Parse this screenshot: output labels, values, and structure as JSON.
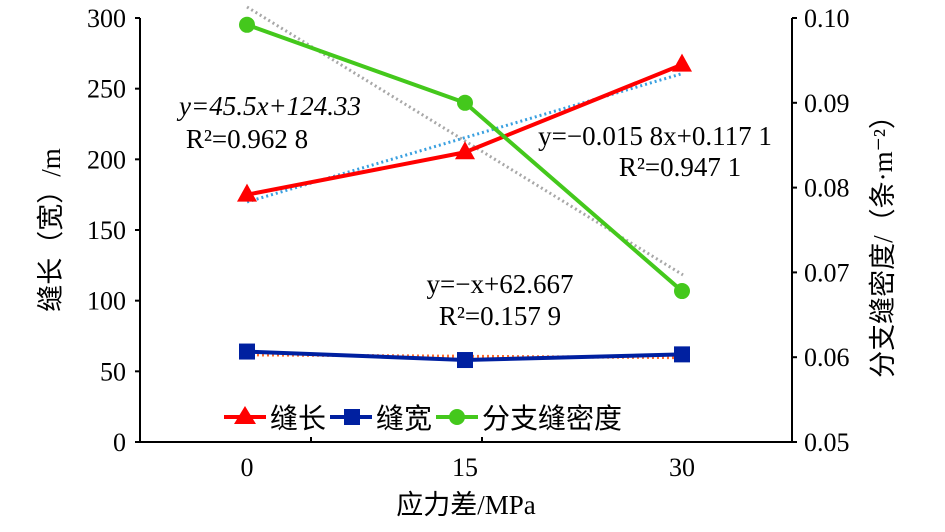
{
  "chart_data": {
    "type": "line",
    "categories": [
      "0",
      "15",
      "30"
    ],
    "xlabel": "应力差/MPa",
    "ylabel": "缝长（宽）/m",
    "ylabel_right": "分支缝密度/（条·m⁻²）",
    "ylim": [
      0,
      300
    ],
    "yticks": [
      "0",
      "50",
      "100",
      "150",
      "200",
      "250",
      "300"
    ],
    "ylim_right": [
      0.05,
      0.1
    ],
    "yticks_right": [
      "0.05",
      "0.06",
      "0.07",
      "0.08",
      "0.09",
      "0.10"
    ],
    "legend_position": "bottom-inside",
    "series": [
      {
        "name": "缝长",
        "axis": "left",
        "color": "#ff0000",
        "marker": "triangle",
        "values": [
          175,
          205,
          267
        ]
      },
      {
        "name": "缝宽",
        "axis": "left",
        "color": "#0020a0",
        "marker": "square",
        "values": [
          64,
          58,
          62
        ]
      },
      {
        "name": "分支缝密度",
        "axis": "right",
        "color": "#44c81c",
        "marker": "circle",
        "values": [
          0.0992,
          0.09,
          0.0678
        ]
      }
    ],
    "trendlines": [
      {
        "series": "缝长",
        "color": "#3aa0e0",
        "slope": 45.5,
        "intercept": 124.33,
        "axis": "left",
        "equation": "y=45.5x+124.33",
        "r2": "R²=0.962 8"
      },
      {
        "series": "缝宽",
        "color": "#ff6a2a",
        "slope": -1,
        "intercept": 62.667,
        "axis": "left",
        "equation": "y=−x+62.667",
        "r2": "R²=0.157 9"
      },
      {
        "series": "分支缝密度",
        "color": "#a8a8a8",
        "slope": -0.0158,
        "intercept": 0.1171,
        "axis": "right",
        "equation": "y=−0.015 8x+0.117 1",
        "r2": "R²=0.947 1"
      }
    ]
  }
}
